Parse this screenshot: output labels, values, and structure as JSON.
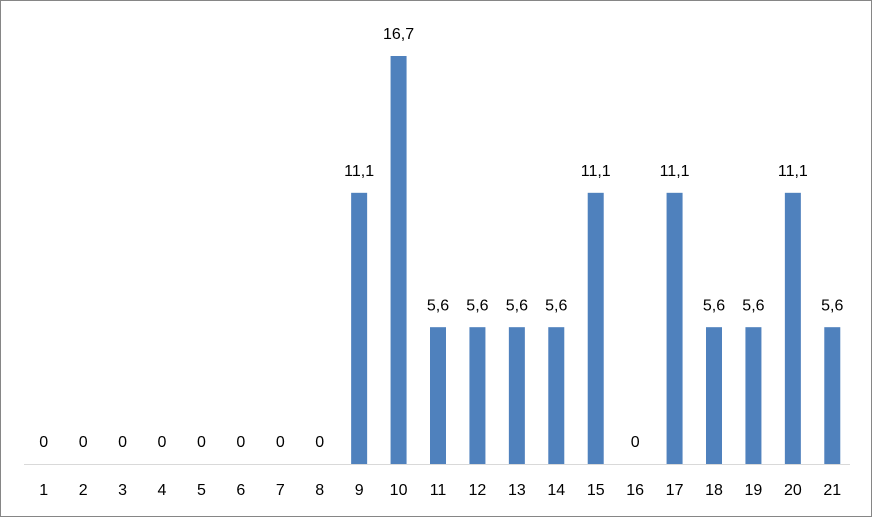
{
  "chart_data": {
    "type": "bar",
    "categories": [
      "1",
      "2",
      "3",
      "4",
      "5",
      "6",
      "7",
      "8",
      "9",
      "10",
      "11",
      "12",
      "13",
      "14",
      "15",
      "16",
      "17",
      "18",
      "19",
      "20",
      "21"
    ],
    "values": [
      0,
      0,
      0,
      0,
      0,
      0,
      0,
      0,
      11.1,
      16.7,
      5.6,
      5.6,
      5.6,
      5.6,
      11.1,
      0,
      11.1,
      5.6,
      5.6,
      11.1,
      5.6
    ],
    "value_labels": [
      "0",
      "0",
      "0",
      "0",
      "0",
      "0",
      "0",
      "0",
      "11,1",
      "16,7",
      "5,6",
      "5,6",
      "5,6",
      "5,6",
      "11,1",
      "0",
      "11,1",
      "5,6",
      "5,6",
      "11,1",
      "5,6"
    ],
    "color": "#4f81bd"
  }
}
